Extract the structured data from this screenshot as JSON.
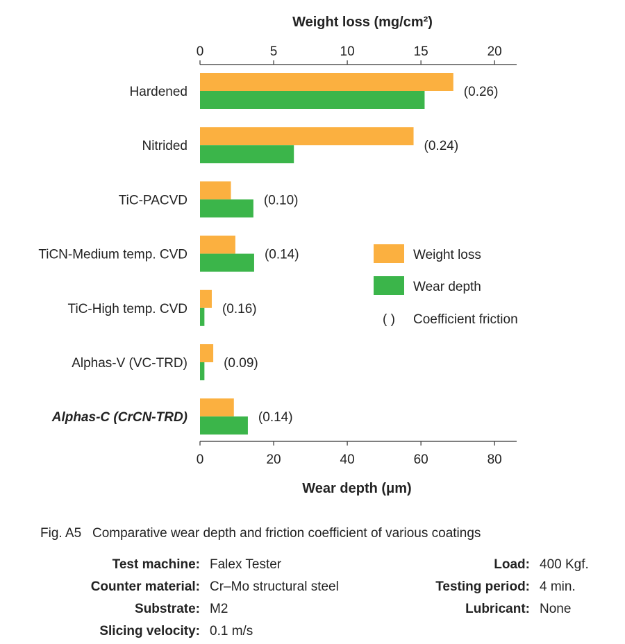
{
  "chart_data": {
    "type": "bar",
    "orientation": "horizontal",
    "categories": [
      "Hardened",
      "Nitrided",
      "TiC-PACVD",
      "TiCN-Medium temp. CVD",
      "TiC-High temp. CVD",
      "Alphas-V (VC-TRD)",
      "Alphas-C (CrCN-TRD)"
    ],
    "highlight_category": "Alphas-C (CrCN-TRD)",
    "top_axis": {
      "title": "Weight loss (mg/cm²)",
      "range": [
        0,
        21.5
      ],
      "ticks": [
        0,
        5,
        10,
        15,
        20
      ]
    },
    "bottom_axis": {
      "title": "Wear depth (μm)",
      "range": [
        0,
        86
      ],
      "ticks": [
        0,
        20,
        40,
        60,
        80
      ]
    },
    "series": [
      {
        "name": "Weight loss",
        "axis": "top",
        "color": "#FBB040",
        "values": [
          17.2,
          14.5,
          2.1,
          2.4,
          0.8,
          0.9,
          2.3
        ]
      },
      {
        "name": "Wear depth",
        "axis": "bottom",
        "color": "#3BB54A",
        "values": [
          61,
          25.5,
          14.5,
          14.7,
          1.2,
          1.2,
          13
        ]
      }
    ],
    "friction_coefficients": [
      "(0.26)",
      "(0.24)",
      "(0.10)",
      "(0.14)",
      "(0.16)",
      "(0.09)",
      "(0.14)"
    ],
    "legend": {
      "placement": "right",
      "entries": [
        "Weight loss",
        "Wear depth"
      ],
      "friction_symbol": "(   )",
      "friction_label": "Coefficient friction"
    },
    "grid": false
  },
  "caption": {
    "fig_label": "Fig. A5",
    "text": "Comparative wear depth and friction coefficient of various coatings"
  },
  "conditions": {
    "left": [
      {
        "label": "Test machine:",
        "value": "Falex Tester"
      },
      {
        "label": "Counter material:",
        "value": "Cr–Mo structural steel"
      },
      {
        "label": "Substrate:",
        "value": "M2"
      },
      {
        "label": "Slicing velocity:",
        "value": "0.1 m/s"
      }
    ],
    "right": [
      {
        "label": "Load:",
        "value": "400 Kgf."
      },
      {
        "label": "Testing period:",
        "value": "4 min."
      },
      {
        "label": "Lubricant:",
        "value": "None"
      }
    ]
  }
}
